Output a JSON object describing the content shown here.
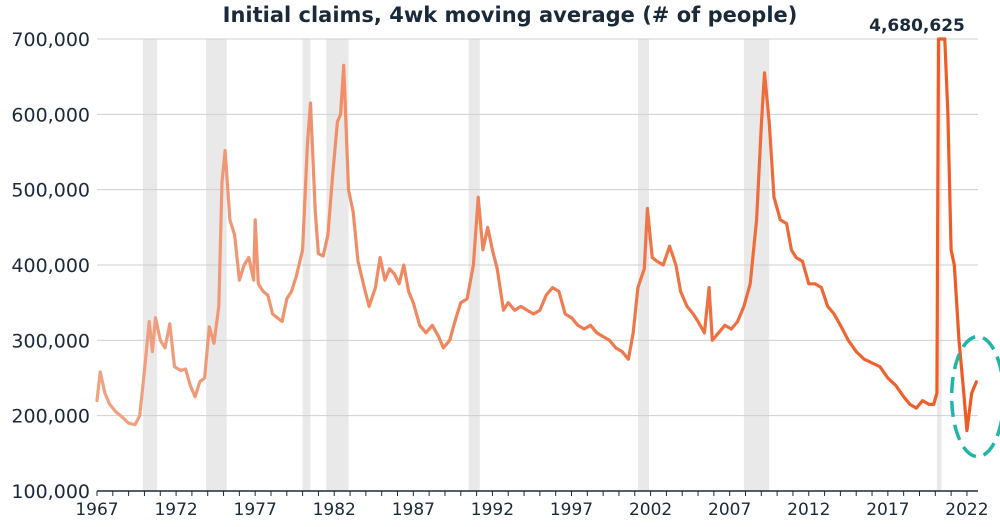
{
  "chart_data": {
    "type": "line",
    "title": "Initial claims, 4wk moving average (# of people)",
    "peak_annotation": "4,680,625",
    "y_tick_labels": [
      "100,000",
      "200,000",
      "300,000",
      "400,000",
      "500,000",
      "600,000",
      "700,000"
    ],
    "y_ticks": [
      100000,
      200000,
      300000,
      400000,
      500000,
      600000,
      700000
    ],
    "x_tick_labels": [
      "1967",
      "1972",
      "1977",
      "1982",
      "1987",
      "1992",
      "1997",
      "2002",
      "2007",
      "2012",
      "2017",
      "2022"
    ],
    "x_ticks": [
      1967,
      1972,
      1977,
      1982,
      1987,
      1992,
      1997,
      2002,
      2007,
      2012,
      2017,
      2022
    ],
    "xlim": [
      1967,
      2022.7
    ],
    "ylim": [
      100000,
      700000
    ],
    "grid": true,
    "recessions": [
      [
        1969.9,
        1970.8
      ],
      [
        1973.9,
        1975.2
      ],
      [
        1980.0,
        1980.5
      ],
      [
        1981.5,
        1982.9
      ],
      [
        1990.5,
        1991.2
      ],
      [
        2001.2,
        2001.9
      ],
      [
        2007.9,
        2009.5
      ],
      [
        2020.1,
        2020.4
      ]
    ],
    "series": [
      {
        "color_start": "#f0a283",
        "color_end": "#ee5a24",
        "points": [
          [
            1967.0,
            220000
          ],
          [
            1967.2,
            258000
          ],
          [
            1967.5,
            230000
          ],
          [
            1967.8,
            215000
          ],
          [
            1968.2,
            205000
          ],
          [
            1968.6,
            198000
          ],
          [
            1969.0,
            190000
          ],
          [
            1969.4,
            188000
          ],
          [
            1969.7,
            200000
          ],
          [
            1970.0,
            260000
          ],
          [
            1970.3,
            325000
          ],
          [
            1970.5,
            285000
          ],
          [
            1970.7,
            330000
          ],
          [
            1971.0,
            300000
          ],
          [
            1971.3,
            290000
          ],
          [
            1971.6,
            322000
          ],
          [
            1971.9,
            265000
          ],
          [
            1972.3,
            260000
          ],
          [
            1972.6,
            262000
          ],
          [
            1972.9,
            240000
          ],
          [
            1973.2,
            225000
          ],
          [
            1973.5,
            245000
          ],
          [
            1973.8,
            250000
          ],
          [
            1974.1,
            318000
          ],
          [
            1974.4,
            296000
          ],
          [
            1974.7,
            345000
          ],
          [
            1974.9,
            510000
          ],
          [
            1975.1,
            552000
          ],
          [
            1975.4,
            460000
          ],
          [
            1975.7,
            440000
          ],
          [
            1976.0,
            380000
          ],
          [
            1976.3,
            400000
          ],
          [
            1976.6,
            410000
          ],
          [
            1976.9,
            380000
          ],
          [
            1977.0,
            460000
          ],
          [
            1977.2,
            375000
          ],
          [
            1977.5,
            365000
          ],
          [
            1977.8,
            360000
          ],
          [
            1978.1,
            335000
          ],
          [
            1978.4,
            330000
          ],
          [
            1978.7,
            325000
          ],
          [
            1979.0,
            355000
          ],
          [
            1979.3,
            365000
          ],
          [
            1979.6,
            385000
          ],
          [
            1980.0,
            420000
          ],
          [
            1980.3,
            560000
          ],
          [
            1980.5,
            615000
          ],
          [
            1980.8,
            470000
          ],
          [
            1981.0,
            415000
          ],
          [
            1981.3,
            412000
          ],
          [
            1981.6,
            440000
          ],
          [
            1981.9,
            520000
          ],
          [
            1982.2,
            590000
          ],
          [
            1982.4,
            600000
          ],
          [
            1982.6,
            665000
          ],
          [
            1982.9,
            500000
          ],
          [
            1983.2,
            470000
          ],
          [
            1983.5,
            405000
          ],
          [
            1983.9,
            370000
          ],
          [
            1984.2,
            345000
          ],
          [
            1984.6,
            370000
          ],
          [
            1984.9,
            410000
          ],
          [
            1985.2,
            380000
          ],
          [
            1985.5,
            395000
          ],
          [
            1985.8,
            388000
          ],
          [
            1986.1,
            375000
          ],
          [
            1986.4,
            400000
          ],
          [
            1986.7,
            365000
          ],
          [
            1987.0,
            350000
          ],
          [
            1987.4,
            320000
          ],
          [
            1987.8,
            310000
          ],
          [
            1988.2,
            320000
          ],
          [
            1988.6,
            305000
          ],
          [
            1988.9,
            290000
          ],
          [
            1989.3,
            300000
          ],
          [
            1989.7,
            330000
          ],
          [
            1990.0,
            350000
          ],
          [
            1990.4,
            355000
          ],
          [
            1990.8,
            400000
          ],
          [
            1991.1,
            490000
          ],
          [
            1991.4,
            420000
          ],
          [
            1991.7,
            450000
          ],
          [
            1992.0,
            420000
          ],
          [
            1992.3,
            395000
          ],
          [
            1992.7,
            340000
          ],
          [
            1993.0,
            350000
          ],
          [
            1993.4,
            340000
          ],
          [
            1993.8,
            345000
          ],
          [
            1994.2,
            340000
          ],
          [
            1994.6,
            335000
          ],
          [
            1995.0,
            340000
          ],
          [
            1995.4,
            360000
          ],
          [
            1995.8,
            370000
          ],
          [
            1996.2,
            365000
          ],
          [
            1996.6,
            335000
          ],
          [
            1997.0,
            330000
          ],
          [
            1997.4,
            320000
          ],
          [
            1997.8,
            315000
          ],
          [
            1998.2,
            320000
          ],
          [
            1998.6,
            310000
          ],
          [
            1999.0,
            305000
          ],
          [
            1999.4,
            300000
          ],
          [
            1999.8,
            290000
          ],
          [
            2000.2,
            285000
          ],
          [
            2000.6,
            275000
          ],
          [
            2000.9,
            310000
          ],
          [
            2001.2,
            370000
          ],
          [
            2001.6,
            395000
          ],
          [
            2001.8,
            475000
          ],
          [
            2002.1,
            410000
          ],
          [
            2002.4,
            405000
          ],
          [
            2002.8,
            400000
          ],
          [
            2003.2,
            425000
          ],
          [
            2003.6,
            400000
          ],
          [
            2003.9,
            365000
          ],
          [
            2004.3,
            345000
          ],
          [
            2004.7,
            335000
          ],
          [
            2005.0,
            325000
          ],
          [
            2005.4,
            310000
          ],
          [
            2005.7,
            370000
          ],
          [
            2005.9,
            300000
          ],
          [
            2006.3,
            310000
          ],
          [
            2006.7,
            320000
          ],
          [
            2007.1,
            315000
          ],
          [
            2007.5,
            325000
          ],
          [
            2007.9,
            345000
          ],
          [
            2008.3,
            375000
          ],
          [
            2008.7,
            460000
          ],
          [
            2009.0,
            585000
          ],
          [
            2009.2,
            655000
          ],
          [
            2009.5,
            590000
          ],
          [
            2009.8,
            490000
          ],
          [
            2010.2,
            460000
          ],
          [
            2010.6,
            455000
          ],
          [
            2010.9,
            420000
          ],
          [
            2011.2,
            410000
          ],
          [
            2011.6,
            405000
          ],
          [
            2012.0,
            375000
          ],
          [
            2012.4,
            375000
          ],
          [
            2012.8,
            370000
          ],
          [
            2013.2,
            345000
          ],
          [
            2013.6,
            335000
          ],
          [
            2014.0,
            320000
          ],
          [
            2014.5,
            300000
          ],
          [
            2015.0,
            285000
          ],
          [
            2015.5,
            275000
          ],
          [
            2016.0,
            270000
          ],
          [
            2016.5,
            265000
          ],
          [
            2017.0,
            250000
          ],
          [
            2017.5,
            240000
          ],
          [
            2018.0,
            225000
          ],
          [
            2018.4,
            215000
          ],
          [
            2018.8,
            210000
          ],
          [
            2019.2,
            220000
          ],
          [
            2019.6,
            215000
          ],
          [
            2019.9,
            215000
          ],
          [
            2020.1,
            230000
          ],
          [
            2020.2,
            700000
          ],
          [
            2020.6,
            700000
          ],
          [
            2020.8,
            600000
          ],
          [
            2021.0,
            420000
          ],
          [
            2021.2,
            400000
          ],
          [
            2021.5,
            300000
          ],
          [
            2021.8,
            230000
          ],
          [
            2022.0,
            180000
          ],
          [
            2022.3,
            230000
          ],
          [
            2022.6,
            245000
          ]
        ]
      }
    ],
    "highlight_ellipse": {
      "center": [
        2022.3,
        220000
      ],
      "color": "#1fb5a8",
      "style": "dashed"
    }
  }
}
